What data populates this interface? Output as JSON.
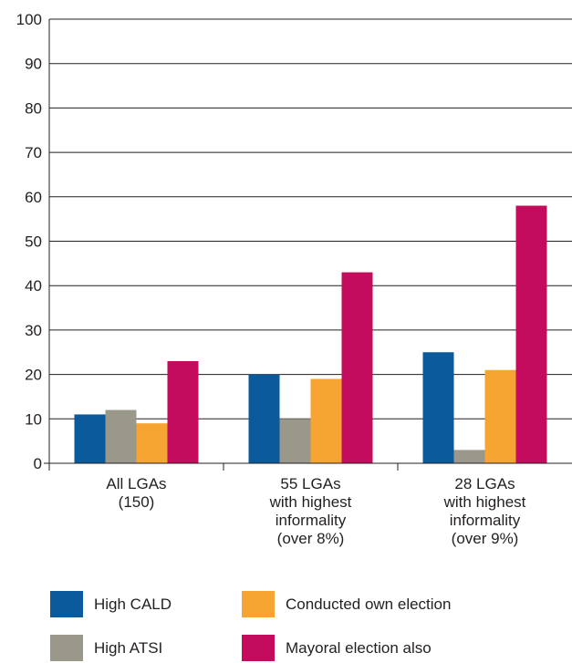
{
  "chart_data": {
    "type": "bar",
    "categories": [
      [
        "All LGAs",
        "(150)"
      ],
      [
        "55 LGAs",
        "with highest",
        "informality",
        "(over 8%)"
      ],
      [
        "28 LGAs",
        "with highest",
        "informality",
        "(over 9%)"
      ]
    ],
    "series": [
      {
        "name": "High CALD",
        "values": [
          11,
          20,
          25
        ],
        "color": "#0b5a9c"
      },
      {
        "name": "High ATSI",
        "values": [
          12,
          10,
          3
        ],
        "color": "#9a978b"
      },
      {
        "name": "Conducted own election",
        "values": [
          9,
          19,
          21
        ],
        "color": "#f6a533"
      },
      {
        "name": "Mayoral election also",
        "values": [
          23,
          43,
          58
        ],
        "color": "#c40c5e"
      }
    ],
    "ylim": [
      0,
      100
    ],
    "yticks": [
      0,
      10,
      20,
      30,
      40,
      50,
      60,
      70,
      80,
      90,
      100
    ],
    "grid": true,
    "legend_position": "bottom"
  }
}
